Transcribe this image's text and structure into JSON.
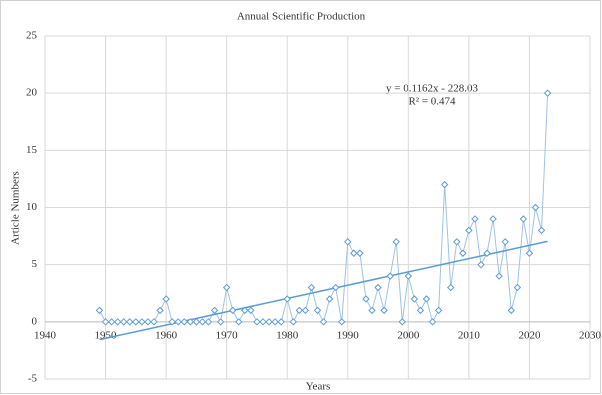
{
  "chart_data": {
    "type": "line",
    "title": "Annual Scientific Production",
    "xlabel": "Years",
    "ylabel": "Article Numbers",
    "x": [
      1949,
      1950,
      1951,
      1952,
      1953,
      1954,
      1955,
      1956,
      1957,
      1958,
      1959,
      1960,
      1961,
      1962,
      1963,
      1964,
      1965,
      1966,
      1967,
      1968,
      1969,
      1970,
      1971,
      1972,
      1973,
      1974,
      1975,
      1976,
      1977,
      1978,
      1979,
      1980,
      1981,
      1982,
      1983,
      1984,
      1985,
      1986,
      1987,
      1988,
      1989,
      1990,
      1991,
      1992,
      1993,
      1994,
      1995,
      1996,
      1997,
      1998,
      1999,
      2000,
      2001,
      2002,
      2003,
      2004,
      2005,
      2006,
      2007,
      2008,
      2009,
      2010,
      2011,
      2012,
      2013,
      2014,
      2015,
      2016,
      2017,
      2018,
      2019,
      2020,
      2021,
      2022,
      2023
    ],
    "series": [
      {
        "color": "#9dc3e6",
        "marker_color": "#5b9bd5",
        "values": [
          1,
          0,
          0,
          0,
          0,
          0,
          0,
          0,
          0,
          0,
          1,
          2,
          0,
          0,
          0,
          0,
          0,
          0,
          0,
          1,
          0,
          3,
          1,
          0,
          1,
          1,
          0,
          0,
          0,
          0,
          0,
          2,
          0,
          1,
          1,
          3,
          1,
          0,
          2,
          3,
          0,
          7,
          6,
          6,
          2,
          1,
          3,
          1,
          4,
          7,
          0,
          4,
          2,
          1,
          2,
          0,
          1,
          12,
          3,
          7,
          6,
          8,
          9,
          5,
          6,
          9,
          4,
          7,
          1,
          3,
          9,
          6,
          10,
          8,
          20
        ]
      }
    ],
    "trendline": {
      "x": [
        1949,
        2023
      ],
      "values": [
        -1.56,
        7.04
      ],
      "color": "#5b9bd5"
    },
    "annotations": [
      "y = 0.1162x - 228.03",
      "R² = 0.474"
    ],
    "xlim": [
      1940,
      2030
    ],
    "xticks": [
      1940,
      1950,
      1960,
      1970,
      1980,
      1990,
      2000,
      2010,
      2020,
      2030
    ],
    "ylim": [
      -5,
      25
    ],
    "yticks": [
      -5,
      0,
      5,
      10,
      15,
      20,
      25
    ],
    "grid": true
  }
}
